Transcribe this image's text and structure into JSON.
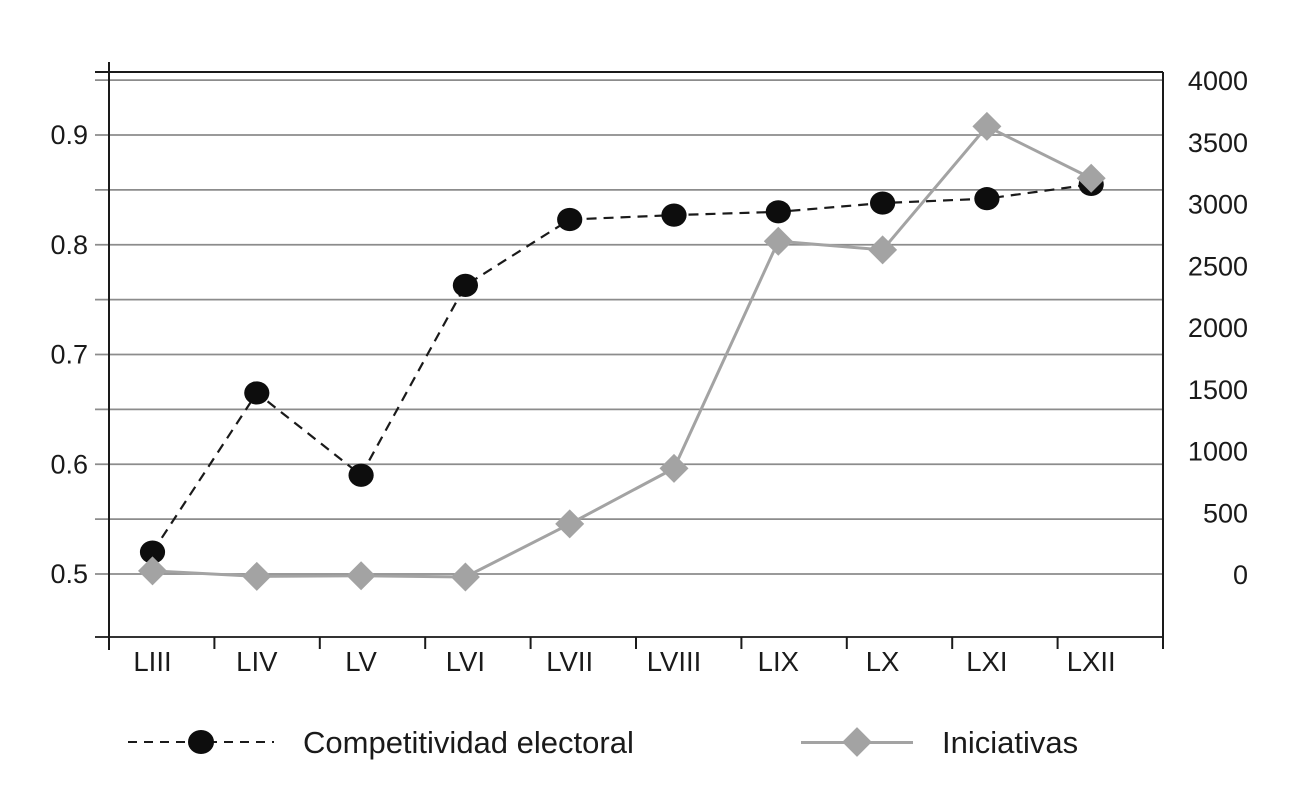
{
  "chart_data": {
    "type": "line",
    "title": "",
    "categories": [
      "LIII",
      "LIV",
      "LV",
      "LVI",
      "LVII",
      "LVIII",
      "LIX",
      "LX",
      "LXI",
      "LXII"
    ],
    "series": [
      {
        "name": "Competitividad electoral",
        "axis": "left",
        "line_style": "dashed",
        "marker": "circle",
        "color": "#1a1a1a",
        "marker_color": "#0d0d0d",
        "values": [
          0.52,
          0.665,
          0.59,
          0.763,
          0.823,
          0.827,
          0.83,
          0.838,
          0.842,
          0.855
        ]
      },
      {
        "name": "Iniciativas",
        "axis": "right",
        "line_style": "solid",
        "marker": "diamond",
        "color": "#a3a3a3",
        "marker_color": "#a3a3a3",
        "values": [
          50,
          5,
          10,
          0,
          430,
          880,
          2720,
          2650,
          3650,
          3230
        ]
      }
    ],
    "left_axis": {
      "min": 0.44,
      "max": 0.96,
      "tick_values": [
        0.9,
        0.8,
        0.7,
        0.6,
        0.5
      ],
      "tick_labels": [
        "0.9",
        "0.8",
        "0.7",
        "0.6",
        "0.5"
      ],
      "gridline_step": 0.05,
      "gridline_min": 0.5,
      "gridline_max": 0.95
    },
    "right_axis": {
      "min": 0,
      "max": 4000,
      "tick_values": [
        4000,
        3500,
        3000,
        2500,
        2000,
        1500,
        1000,
        500,
        0
      ],
      "tick_labels": [
        "4000",
        "3500",
        "3000",
        "2500",
        "2000",
        "1500",
        "1000",
        "500",
        "0"
      ]
    },
    "grid": "horizontal",
    "legend_position": "bottom",
    "colors": {
      "grid": "#8c8c8c",
      "axis": "#1a1a1a",
      "bottom_line": "#333333",
      "text": "#1a1a1a",
      "background": "#ffffff"
    }
  }
}
